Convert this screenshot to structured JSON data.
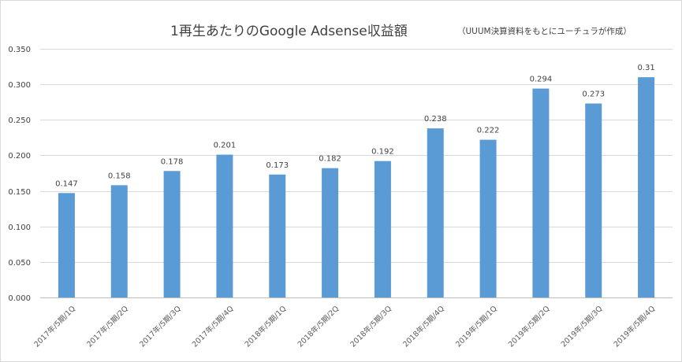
{
  "chart_data": {
    "type": "bar",
    "title": "1再生あたりのGoogle Adsense収益額",
    "subtitle": "（UUUM決算資料をもとにユーチュラが作成）",
    "xlabel": "",
    "ylabel": "",
    "ylim": [
      0,
      0.35
    ],
    "yticks": [
      "0.000",
      "0.050",
      "0.100",
      "0.150",
      "0.200",
      "0.250",
      "0.300",
      "0.350"
    ],
    "ytick_values": [
      0,
      0.05,
      0.1,
      0.15,
      0.2,
      0.25,
      0.3,
      0.35
    ],
    "grid": true,
    "bar_color": "#5b9bd5",
    "categories": [
      "2017年/5期/1Q",
      "2017年/5期/2Q",
      "2017年/5期/3Q",
      "2017年/5期/4Q",
      "2018年/5期/1Q",
      "2018年/5期/2Q",
      "2018年/5期/3Q",
      "2018年/5期/4Q",
      "2019年/5期/1Q",
      "2019年/5期/2Q",
      "2019年/5期/3Q",
      "2019年/5期/4Q"
    ],
    "values": [
      0.147,
      0.158,
      0.178,
      0.201,
      0.173,
      0.182,
      0.192,
      0.238,
      0.222,
      0.294,
      0.273,
      0.31
    ],
    "data_labels": [
      "0.147",
      "0.158",
      "0.178",
      "0.201",
      "0.173",
      "0.182",
      "0.192",
      "0.238",
      "0.222",
      "0.294",
      "0.273",
      "0.31"
    ]
  }
}
